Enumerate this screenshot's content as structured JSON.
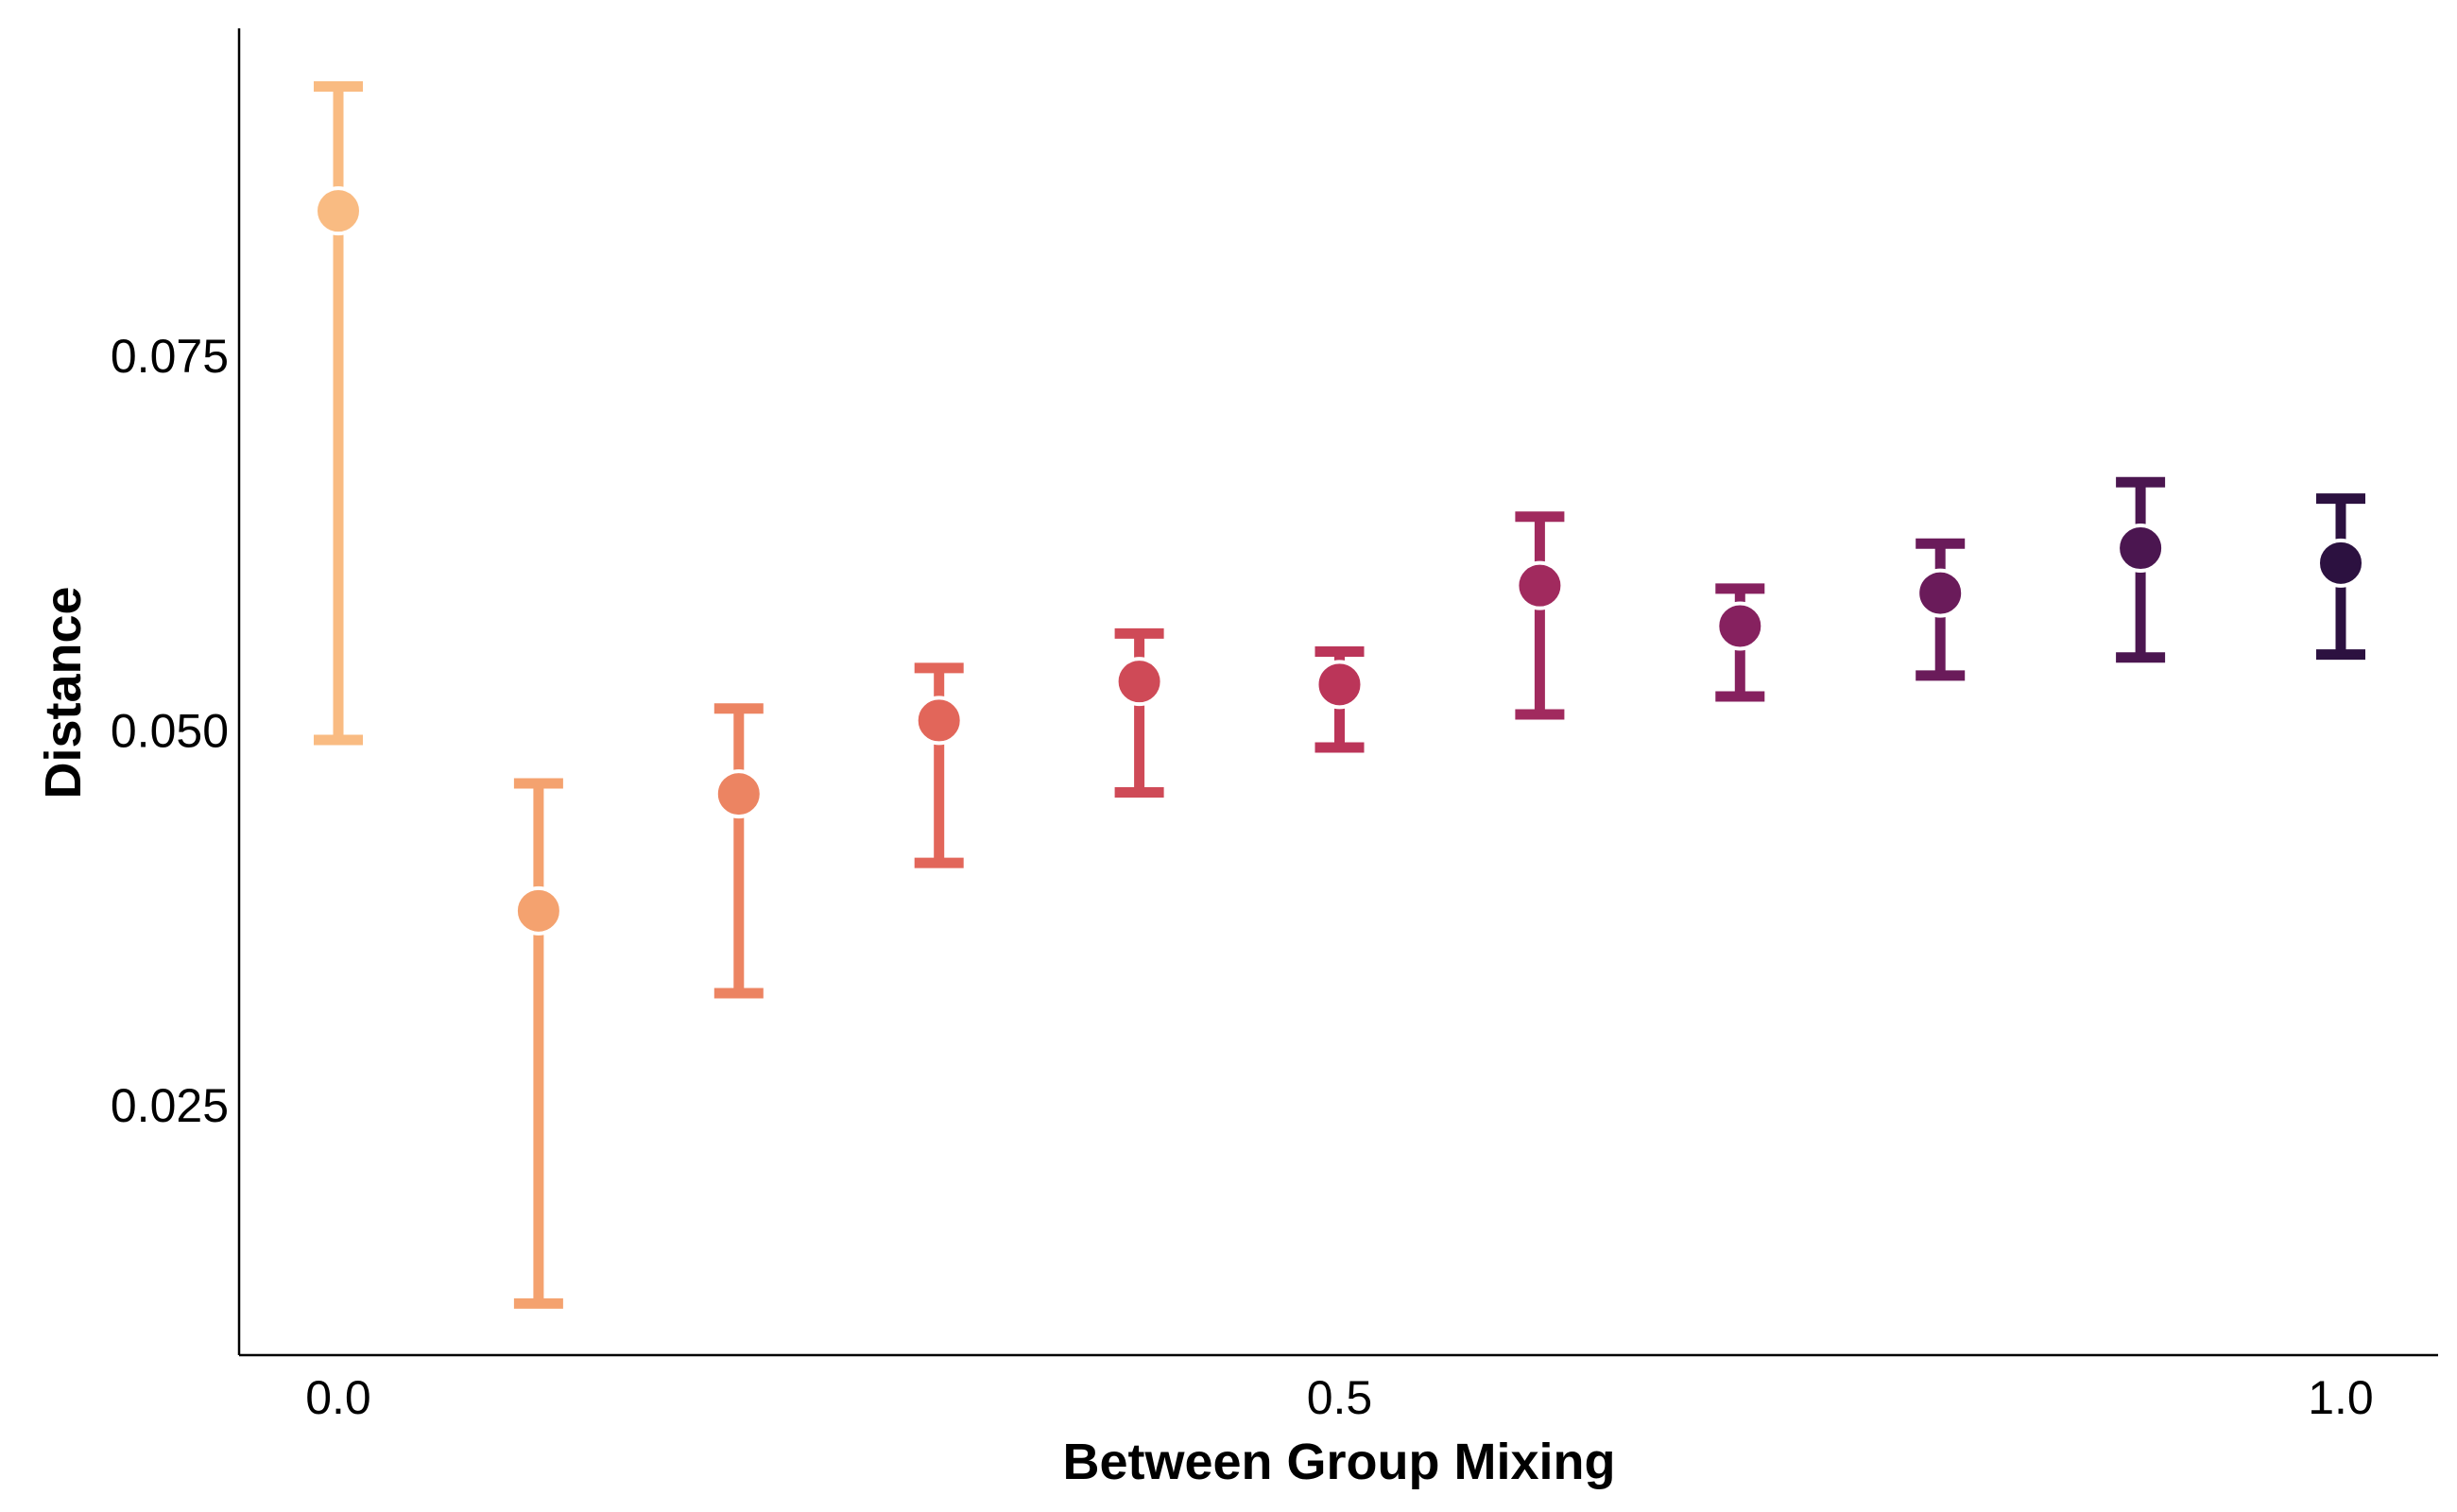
{
  "chart_data": {
    "type": "scatter",
    "title": "",
    "xlabel": "Between Group Mixing",
    "ylabel": "Distance",
    "xlim": [
      -0.05,
      1.05
    ],
    "ylim": [
      0.0085,
      0.0975
    ],
    "xticks": [
      {
        "value": 0.0,
        "label": "0.0"
      },
      {
        "value": 0.5,
        "label": "0.5"
      },
      {
        "value": 1.0,
        "label": "1.0"
      }
    ],
    "yticks": [
      {
        "value": 0.025,
        "label": "0.025"
      },
      {
        "value": 0.05,
        "label": "0.050"
      },
      {
        "value": 0.075,
        "label": "0.075"
      }
    ],
    "grid": false,
    "legend": "none",
    "series": [
      {
        "points": [
          {
            "x": 0.0,
            "y": 0.0847,
            "lower": 0.0494,
            "upper": 0.093,
            "color": "#f9bb82"
          },
          {
            "x": 0.1,
            "y": 0.038,
            "lower": 0.0118,
            "upper": 0.0465,
            "color": "#f4a26f"
          },
          {
            "x": 0.2,
            "y": 0.0458,
            "lower": 0.0325,
            "upper": 0.0515,
            "color": "#ec8462"
          },
          {
            "x": 0.3,
            "y": 0.0507,
            "lower": 0.0412,
            "upper": 0.0542,
            "color": "#e2665a"
          },
          {
            "x": 0.4,
            "y": 0.0533,
            "lower": 0.0459,
            "upper": 0.0565,
            "color": "#cf4a57"
          },
          {
            "x": 0.5,
            "y": 0.0531,
            "lower": 0.0489,
            "upper": 0.0553,
            "color": "#bb3559"
          },
          {
            "x": 0.6,
            "y": 0.0597,
            "lower": 0.0511,
            "upper": 0.0643,
            "color": "#a12a5e"
          },
          {
            "x": 0.7,
            "y": 0.057,
            "lower": 0.0523,
            "upper": 0.0595,
            "color": "#86215f"
          },
          {
            "x": 0.8,
            "y": 0.0592,
            "lower": 0.0537,
            "upper": 0.0625,
            "color": "#6a1b5a"
          },
          {
            "x": 0.9,
            "y": 0.0622,
            "lower": 0.0549,
            "upper": 0.0666,
            "color": "#4b1650"
          },
          {
            "x": 1.0,
            "y": 0.0612,
            "lower": 0.0551,
            "upper": 0.0655,
            "color": "#2c1140"
          }
        ]
      }
    ]
  }
}
